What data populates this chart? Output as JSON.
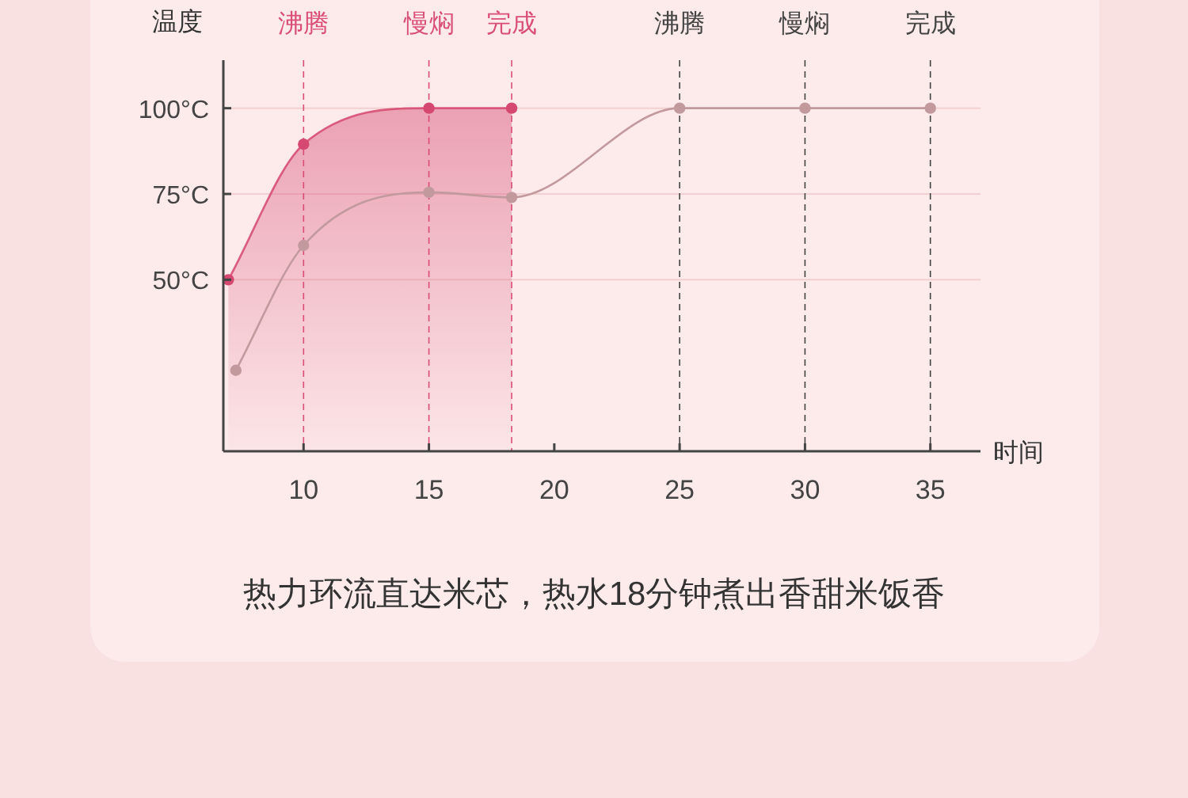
{
  "chart_data": {
    "type": "line",
    "ylabel": "温度",
    "xlabel": "时间",
    "xlim": [
      6.8,
      37
    ],
    "xticks": [
      10,
      15,
      20,
      25,
      30,
      35
    ],
    "ylim": [
      0,
      114
    ],
    "yticks": [
      {
        "value": 50,
        "label": "50°C"
      },
      {
        "value": 75,
        "label": "75°C"
      },
      {
        "value": 100,
        "label": "100°C"
      }
    ],
    "grid": "y",
    "marker": "circle",
    "series": [
      {
        "type": "area",
        "color": "#d5486f",
        "x": [
          7,
          10,
          15,
          18.3
        ],
        "values": [
          50,
          89.5,
          100,
          100
        ]
      },
      {
        "type": "line",
        "color": "#c29a9e",
        "x": [
          7.3,
          10,
          15,
          18.3,
          25,
          30,
          35
        ],
        "values": [
          23.6,
          60,
          75.5,
          74,
          100,
          100,
          100
        ]
      }
    ],
    "ref_lines": [
      {
        "axis": "x",
        "value": 10,
        "label": "沸腾",
        "color": "#d94f78",
        "line_style": "dashed"
      },
      {
        "axis": "x",
        "value": 15,
        "label": "慢焖",
        "color": "#d94f78",
        "line_style": "dashed"
      },
      {
        "axis": "x",
        "value": 18.3,
        "label": "完成",
        "color": "#d94f78",
        "line_style": "dashed"
      },
      {
        "axis": "x",
        "value": 25,
        "label": "沸腾",
        "color": "#444444",
        "line_style": "dashed"
      },
      {
        "axis": "x",
        "value": 30,
        "label": "慢焖",
        "color": "#444444",
        "line_style": "dashed"
      },
      {
        "axis": "x",
        "value": 35,
        "label": "完成",
        "color": "#444444",
        "line_style": "dashed"
      }
    ],
    "annotations": [
      "热力环流直达米芯，热水18分钟煮出香甜米饭香"
    ]
  }
}
